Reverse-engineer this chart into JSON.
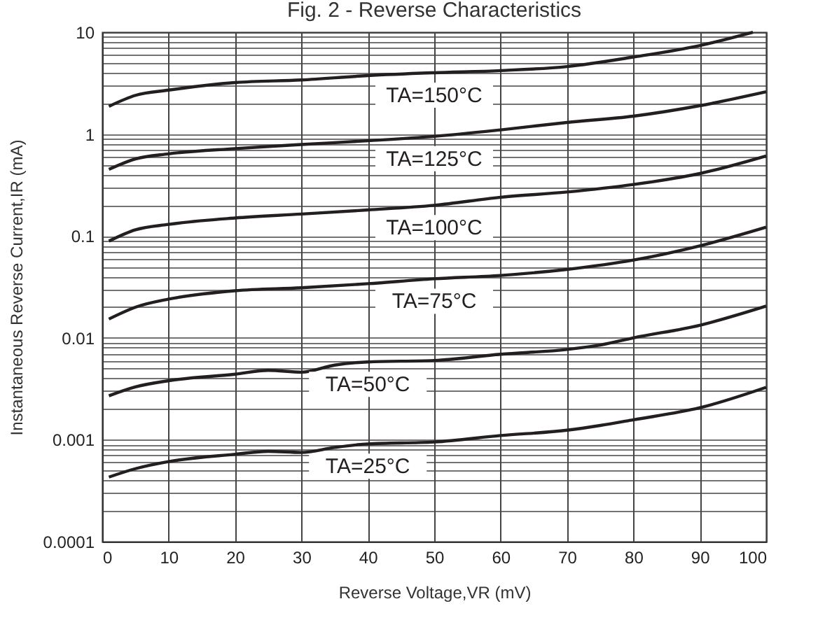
{
  "chart_data": {
    "type": "line",
    "title": "Fig. 2 - Reverse Characteristics",
    "xlabel": "Reverse Voltage,VR (mV)",
    "ylabel": "Instantaneous Reverse Current,IR (mA)",
    "log": "y",
    "grid": true,
    "line_style": "solid",
    "marker": "none",
    "xlim": [
      0,
      100
    ],
    "xticks": [
      0,
      10,
      20,
      30,
      40,
      50,
      60,
      70,
      80,
      90,
      100
    ],
    "ylim": [
      0.0001,
      10
    ],
    "yticks": [
      {
        "value": 0.0001,
        "label": "0.0001"
      },
      {
        "value": 0.0002,
        "label": null
      },
      {
        "value": 0.0003,
        "label": null
      },
      {
        "value": 0.0004,
        "label": null
      },
      {
        "value": 0.0005,
        "label": null
      },
      {
        "value": 0.0006,
        "label": null
      },
      {
        "value": 0.0007,
        "label": null
      },
      {
        "value": 0.0008,
        "label": null
      },
      {
        "value": 0.0009,
        "label": null
      },
      {
        "value": 0.001,
        "label": "0.001"
      },
      {
        "value": 0.002,
        "label": null
      },
      {
        "value": 0.003,
        "label": null
      },
      {
        "value": 0.004,
        "label": null
      },
      {
        "value": 0.005,
        "label": null
      },
      {
        "value": 0.006,
        "label": null
      },
      {
        "value": 0.007,
        "label": null
      },
      {
        "value": 0.008,
        "label": null
      },
      {
        "value": 0.009,
        "label": null
      },
      {
        "value": 0.01,
        "label": "0.01"
      },
      {
        "value": 0.02,
        "label": null
      },
      {
        "value": 0.03,
        "label": null
      },
      {
        "value": 0.04,
        "label": null
      },
      {
        "value": 0.05,
        "label": null
      },
      {
        "value": 0.06,
        "label": null
      },
      {
        "value": 0.07,
        "label": null
      },
      {
        "value": 0.08,
        "label": null
      },
      {
        "value": 0.09,
        "label": null
      },
      {
        "value": 0.1,
        "label": "0.1"
      },
      {
        "value": 0.2,
        "label": null
      },
      {
        "value": 0.3,
        "label": null
      },
      {
        "value": 0.4,
        "label": null
      },
      {
        "value": 0.5,
        "label": null
      },
      {
        "value": 0.6,
        "label": null
      },
      {
        "value": 0.7,
        "label": null
      },
      {
        "value": 0.8,
        "label": null
      },
      {
        "value": 0.9,
        "label": null
      },
      {
        "value": 1,
        "label": "1"
      },
      {
        "value": 2,
        "label": null
      },
      {
        "value": 3,
        "label": null
      },
      {
        "value": 4,
        "label": null
      },
      {
        "value": 5,
        "label": null
      },
      {
        "value": 6,
        "label": null
      },
      {
        "value": 7,
        "label": null
      },
      {
        "value": 8,
        "label": null
      },
      {
        "value": 9,
        "label": null
      },
      {
        "value": 10,
        "label": "10"
      }
    ],
    "series": [
      {
        "name": "TA=150°C",
        "color": "#231f20",
        "x": [
          1,
          5,
          10,
          20,
          30,
          40,
          50,
          60,
          70,
          80,
          90,
          98
        ],
        "values": [
          1.87,
          2.4,
          2.7,
          3.2,
          3.4,
          3.75,
          4.0,
          4.2,
          4.6,
          5.7,
          7.4,
          10
        ]
      },
      {
        "name": "TA=125°C",
        "color": "#231f20",
        "x": [
          1,
          5,
          10,
          20,
          30,
          40,
          50,
          60,
          70,
          80,
          90,
          100
        ],
        "values": [
          0.45,
          0.57,
          0.64,
          0.72,
          0.79,
          0.86,
          0.95,
          1.1,
          1.3,
          1.5,
          1.9,
          2.6
        ]
      },
      {
        "name": "TA=100°C",
        "color": "#231f20",
        "x": [
          1,
          5,
          10,
          20,
          30,
          40,
          50,
          60,
          70,
          80,
          90,
          100
        ],
        "values": [
          0.089,
          0.115,
          0.13,
          0.15,
          0.164,
          0.18,
          0.2,
          0.24,
          0.27,
          0.32,
          0.41,
          0.61
        ]
      },
      {
        "name": "TA=75°C",
        "color": "#231f20",
        "x": [
          1,
          5,
          10,
          20,
          30,
          40,
          50,
          60,
          70,
          80,
          90,
          100
        ],
        "values": [
          0.0153,
          0.02,
          0.024,
          0.029,
          0.031,
          0.034,
          0.038,
          0.041,
          0.047,
          0.058,
          0.08,
          0.122
        ]
      },
      {
        "name": "TA=50°C",
        "color": "#231f20",
        "x": [
          1,
          5,
          10,
          20,
          25,
          30,
          35,
          40,
          50,
          60,
          70,
          75,
          80,
          90,
          100
        ],
        "values": [
          0.0027,
          0.0033,
          0.0038,
          0.0044,
          0.0048,
          0.0046,
          0.0054,
          0.0058,
          0.006,
          0.0069,
          0.0077,
          0.0085,
          0.01,
          0.0133,
          0.0205
        ]
      },
      {
        "name": "TA=25°C",
        "color": "#231f20",
        "x": [
          1,
          5,
          10,
          20,
          25,
          30,
          35,
          40,
          50,
          60,
          70,
          75,
          80,
          90,
          100
        ],
        "values": [
          0.00043,
          0.00052,
          0.00061,
          0.00072,
          0.00077,
          0.00075,
          0.00084,
          0.00091,
          0.00095,
          0.0011,
          0.00124,
          0.00138,
          0.00157,
          0.00206,
          0.00327
        ]
      }
    ]
  }
}
